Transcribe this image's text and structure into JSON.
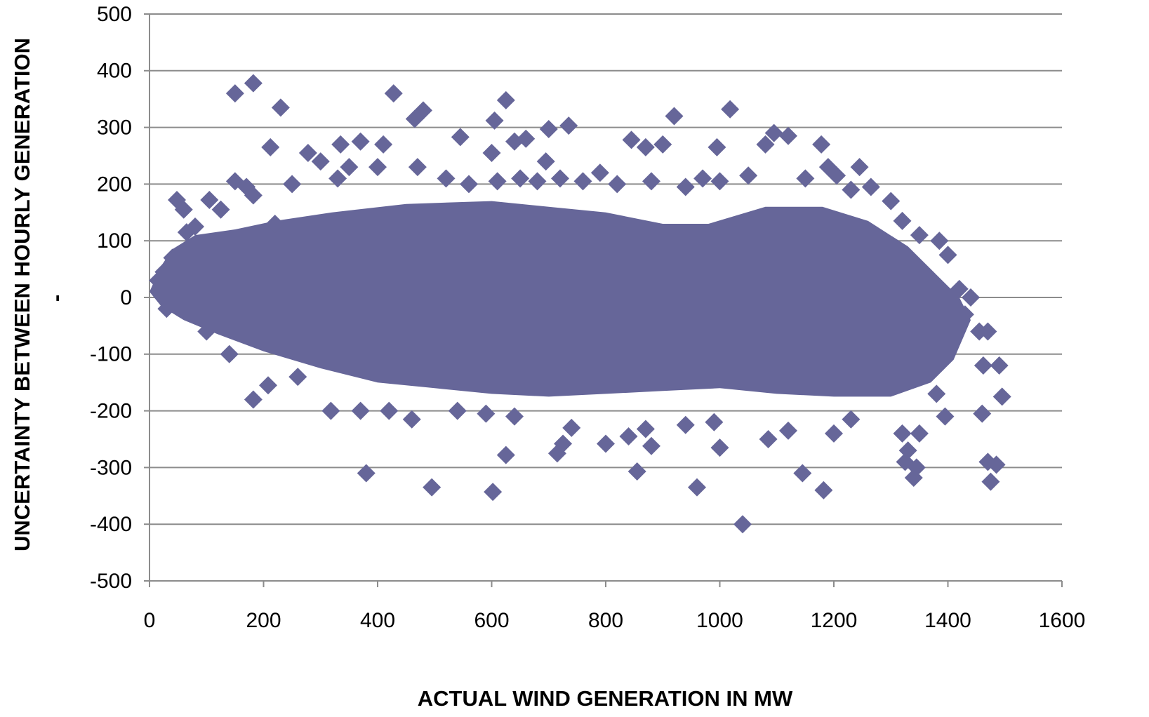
{
  "chart_data": {
    "type": "scatter",
    "title": "",
    "xlabel": "ACTUAL WIND GENERATION IN MW",
    "ylabel": "UNCERTAINTY BETWEEN HOURLY GENERATION",
    "ylabel_suffix": "-",
    "xlim": [
      0,
      1600
    ],
    "ylim": [
      -500,
      500
    ],
    "xticks": [
      "0",
      "200",
      "400",
      "600",
      "800",
      "1000",
      "1200",
      "1400",
      "1600"
    ],
    "yticks": [
      "500",
      "400",
      "300",
      "200",
      "100",
      "0",
      "-100",
      "-200",
      "-300",
      "-400",
      "-500"
    ],
    "grid": "horizontal",
    "legend": "none",
    "marker": "diamond",
    "marker_color": "#666699",
    "series": [
      {
        "points": [
          [
            150,
            360
          ],
          [
            182,
            378
          ],
          [
            230,
            335
          ],
          [
            428,
            360
          ],
          [
            480,
            330
          ],
          [
            465,
            315
          ],
          [
            625,
            348
          ],
          [
            605,
            312
          ],
          [
            640,
            275
          ],
          [
            700,
            297
          ],
          [
            735,
            303
          ],
          [
            920,
            320
          ],
          [
            1018,
            332
          ],
          [
            212,
            265
          ],
          [
            370,
            275
          ],
          [
            410,
            270
          ],
          [
            335,
            270
          ],
          [
            278,
            255
          ],
          [
            300,
            240
          ],
          [
            545,
            283
          ],
          [
            600,
            255
          ],
          [
            660,
            280
          ],
          [
            695,
            240
          ],
          [
            760,
            205
          ],
          [
            845,
            278
          ],
          [
            870,
            265
          ],
          [
            900,
            270
          ],
          [
            995,
            265
          ],
          [
            970,
            210
          ],
          [
            1080,
            270
          ],
          [
            1095,
            290
          ],
          [
            1120,
            285
          ],
          [
            1178,
            270
          ],
          [
            1190,
            230
          ],
          [
            1245,
            230
          ],
          [
            1265,
            195
          ],
          [
            1300,
            170
          ],
          [
            1320,
            135
          ],
          [
            1350,
            110
          ],
          [
            1385,
            100
          ],
          [
            1400,
            75
          ],
          [
            48,
            172
          ],
          [
            60,
            155
          ],
          [
            105,
            172
          ],
          [
            125,
            155
          ],
          [
            150,
            205
          ],
          [
            170,
            195
          ],
          [
            182,
            180
          ],
          [
            65,
            115
          ],
          [
            80,
            125
          ],
          [
            220,
            130
          ],
          [
            250,
            200
          ],
          [
            330,
            210
          ],
          [
            350,
            230
          ],
          [
            400,
            230
          ],
          [
            470,
            230
          ],
          [
            520,
            210
          ],
          [
            560,
            200
          ],
          [
            610,
            205
          ],
          [
            650,
            210
          ],
          [
            680,
            205
          ],
          [
            720,
            210
          ],
          [
            790,
            220
          ],
          [
            820,
            200
          ],
          [
            880,
            205
          ],
          [
            940,
            195
          ],
          [
            1000,
            205
          ],
          [
            1050,
            215
          ],
          [
            1150,
            210
          ],
          [
            1205,
            215
          ],
          [
            1230,
            190
          ],
          [
            1420,
            15
          ],
          [
            1440,
            0
          ],
          [
            1430,
            -30
          ],
          [
            1455,
            -60
          ],
          [
            1470,
            -60
          ],
          [
            1462,
            -120
          ],
          [
            1490,
            -120
          ],
          [
            1495,
            -175
          ],
          [
            1460,
            -205
          ],
          [
            1470,
            -290
          ],
          [
            1485,
            -295
          ],
          [
            1475,
            -325
          ],
          [
            1395,
            -210
          ],
          [
            1380,
            -170
          ],
          [
            1350,
            -240
          ],
          [
            1320,
            -240
          ],
          [
            1330,
            -270
          ],
          [
            1325,
            -290
          ],
          [
            1345,
            -300
          ],
          [
            1340,
            -318
          ],
          [
            1230,
            -215
          ],
          [
            1200,
            -240
          ],
          [
            1182,
            -340
          ],
          [
            1145,
            -310
          ],
          [
            1120,
            -235
          ],
          [
            1085,
            -250
          ],
          [
            1040,
            -400
          ],
          [
            1000,
            -265
          ],
          [
            990,
            -220
          ],
          [
            960,
            -335
          ],
          [
            940,
            -225
          ],
          [
            880,
            -262
          ],
          [
            870,
            -232
          ],
          [
            855,
            -307
          ],
          [
            840,
            -245
          ],
          [
            800,
            -258
          ],
          [
            740,
            -230
          ],
          [
            715,
            -275
          ],
          [
            725,
            -258
          ],
          [
            640,
            -210
          ],
          [
            625,
            -278
          ],
          [
            602,
            -343
          ],
          [
            590,
            -205
          ],
          [
            540,
            -200
          ],
          [
            495,
            -335
          ],
          [
            460,
            -215
          ],
          [
            420,
            -200
          ],
          [
            380,
            -310
          ],
          [
            370,
            -200
          ],
          [
            318,
            -200
          ],
          [
            260,
            -140
          ],
          [
            208,
            -155
          ],
          [
            182,
            -180
          ],
          [
            140,
            -100
          ],
          [
            100,
            -60
          ],
          [
            30,
            -20
          ],
          [
            20,
            10
          ],
          [
            15,
            30
          ],
          [
            25,
            45
          ],
          [
            40,
            70
          ],
          [
            35,
            -10
          ]
        ]
      }
    ]
  }
}
